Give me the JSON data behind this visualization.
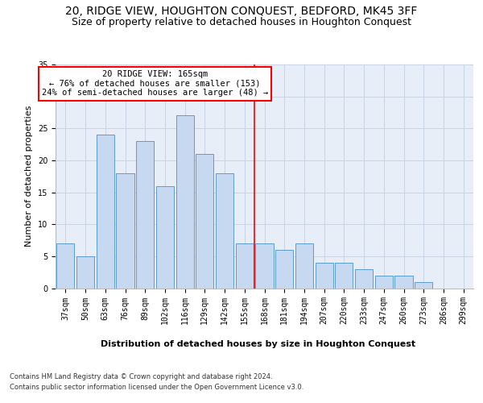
{
  "title1": "20, RIDGE VIEW, HOUGHTON CONQUEST, BEDFORD, MK45 3FF",
  "title2": "Size of property relative to detached houses in Houghton Conquest",
  "xlabel": "Distribution of detached houses by size in Houghton Conquest",
  "ylabel": "Number of detached properties",
  "categories": [
    "37sqm",
    "50sqm",
    "63sqm",
    "76sqm",
    "89sqm",
    "102sqm",
    "116sqm",
    "129sqm",
    "142sqm",
    "155sqm",
    "168sqm",
    "181sqm",
    "194sqm",
    "207sqm",
    "220sqm",
    "233sqm",
    "247sqm",
    "260sqm",
    "273sqm",
    "286sqm",
    "299sqm"
  ],
  "values": [
    7,
    5,
    24,
    18,
    23,
    16,
    27,
    21,
    18,
    7,
    7,
    6,
    7,
    4,
    4,
    3,
    2,
    2,
    1,
    0,
    0
  ],
  "bar_color": "#c6d9f1",
  "bar_edge_color": "#5b9bd5",
  "vline_x": 9.5,
  "vline_color": "red",
  "annotation_text": "20 RIDGE VIEW: 165sqm\n← 76% of detached houses are smaller (153)\n24% of semi-detached houses are larger (48) →",
  "annotation_box_color": "white",
  "annotation_box_edge": "red",
  "ylim": [
    0,
    35
  ],
  "yticks": [
    0,
    5,
    10,
    15,
    20,
    25,
    30,
    35
  ],
  "grid_color": "#c8d4e3",
  "bg_color": "#e8eef7",
  "footer1": "Contains HM Land Registry data © Crown copyright and database right 2024.",
  "footer2": "Contains public sector information licensed under the Open Government Licence v3.0.",
  "title1_fontsize": 10,
  "title2_fontsize": 9,
  "ylabel_fontsize": 8,
  "xlabel_fontsize": 8,
  "tick_fontsize": 7,
  "annot_fontsize": 7.5,
  "footer_fontsize": 6
}
